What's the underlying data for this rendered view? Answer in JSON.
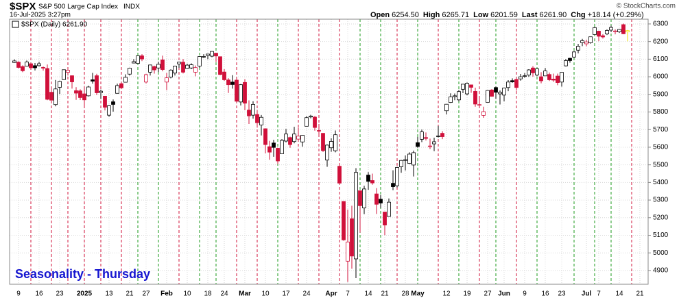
{
  "header": {
    "symbol": "$SPX",
    "name": "S&P 500 Large Cap Index",
    "exchange": "INDX",
    "timestamp": "16-Jul-2025 3:27pm",
    "quote": [
      {
        "label": "Open",
        "value": "6254.50"
      },
      {
        "label": "High",
        "value": "6265.71"
      },
      {
        "label": "Low",
        "value": "6201.59"
      },
      {
        "label": "Last",
        "value": "6261.90"
      },
      {
        "label": "Chg",
        "value": "+18.14 (+0.29%)"
      }
    ],
    "credit": "© StockCharts.com"
  },
  "chart_data": {
    "type": "candlestick",
    "legend": "$SPX (Daily) 6261.90",
    "annotation": "Seasonality - Thursday",
    "up_color": "#000000",
    "down_color": "#d0103a",
    "current_color": "#f2e600",
    "grid": true,
    "ylim": [
      4822,
      6327
    ],
    "yticks": [
      4900,
      5000,
      5100,
      5200,
      5300,
      5400,
      5500,
      5600,
      5700,
      5800,
      5900,
      6000,
      6100,
      6200,
      6300
    ],
    "categories": [
      null,
      "9",
      null,
      null,
      null,
      null,
      "16",
      null,
      null,
      null,
      null,
      "23",
      null,
      null,
      null,
      null,
      null,
      "2025",
      null,
      null,
      null,
      null,
      null,
      "13",
      null,
      null,
      null,
      null,
      "21",
      null,
      null,
      null,
      "27",
      null,
      null,
      null,
      null,
      "Feb",
      null,
      null,
      null,
      null,
      "10",
      null,
      null,
      null,
      null,
      "18",
      null,
      null,
      null,
      "24",
      null,
      null,
      null,
      null,
      "Mar",
      null,
      null,
      null,
      null,
      "10",
      null,
      null,
      null,
      null,
      "17",
      null,
      null,
      null,
      null,
      "24",
      null,
      null,
      null,
      null,
      null,
      "Apr",
      null,
      null,
      null,
      "7",
      null,
      null,
      null,
      null,
      "14",
      null,
      null,
      null,
      "21",
      null,
      null,
      null,
      null,
      "28",
      null,
      null,
      "May",
      null,
      null,
      null,
      null,
      null,
      null,
      "12",
      null,
      null,
      null,
      null,
      "19",
      null,
      null,
      null,
      null,
      "27",
      null,
      null,
      null,
      "Jun",
      null,
      null,
      null,
      null,
      "9",
      null,
      null,
      null,
      null,
      "16",
      null,
      null,
      null,
      "23",
      null,
      null,
      null,
      null,
      null,
      "Jul",
      null,
      null,
      "7",
      null,
      null,
      null,
      null,
      "14",
      null,
      null,
      null,
      null,
      "21"
    ],
    "open": [
      6081,
      6083,
      6058,
      6060,
      6074,
      6063,
      6063,
      6053,
      6047,
      5912,
      5842,
      5940,
      5984,
      6025,
      6006,
      5921,
      5920,
      5903,
      5892,
      5983,
      6006,
      5910,
      5890,
      5782,
      5858,
      5906,
      5961,
      5969,
      6015,
      6078,
      6076,
      6119,
      5970,
      6026,
      6058,
      6050,
      6096,
      5970,
      5998,
      6021,
      6073,
      6083,
      6047,
      6050,
      6026,
      6061,
      6115,
      6121,
      6117,
      6134,
      6114,
      6027,
      5982,
      5970,
      5981,
      5857,
      5968,
      5811,
      5782,
      5786,
      5726,
      5705,
      5603,
      5624,
      5594,
      5563,
      5635,
      5655,
      5632,
      5646,
      5630,
      5719,
      5772,
      5771,
      5695,
      5679,
      5527,
      5597,
      5580,
      5492,
      5292,
      4953,
      5194,
      4966,
      5353,
      5255,
      5442,
      5411,
      5335,
      5305,
      5232,
      5207,
      5395,
      5381,
      5489,
      5529,
      5508,
      5499,
      5626,
      5645,
      5655,
      5605,
      5619,
      5663,
      5679,
      5807,
      5854,
      5887,
      5869,
      5929,
      5903,
      5954,
      5917,
      5841,
      5781,
      5855,
      5925,
      5939,
      5903,
      5896,
      5939,
      5978,
      5985,
      5988,
      6004,
      6010,
      6050,
      6010,
      6000,
      6005,
      6013,
      5987,
      6004,
      5970,
      6062,
      6105,
      6112,
      6151,
      6194,
      6187,
      6193,
      6240,
      6259,
      6233,
      6243,
      6265,
      6256,
      6255,
      6296,
      6254.5,
      null,
      null,
      null
    ],
    "high": [
      6099,
      6088,
      6065,
      6092,
      6079,
      6078,
      6085,
      6058,
      6070,
      5935,
      5982,
      5978,
      6040,
      6049,
      6007,
      5941,
      5929,
      5935,
      5949,
      6022,
      6017,
      5927,
      5891,
      5840,
      5871,
      5961,
      5964,
      6014,
      6052,
      6100,
      6119,
      6128,
      6017,
      6069,
      6063,
      6086,
      6120,
      6022,
      6042,
      6063,
      6085,
      6101,
      6074,
      6076,
      6064,
      6116,
      6128,
      6129,
      6145,
      6134,
      6115,
      6043,
      5992,
      6009,
      5994,
      5959,
      5986,
      5866,
      5861,
      5812,
      5783,
      5706,
      5636,
      5642,
      5597,
      5646,
      5704,
      5660,
      5716,
      5711,
      5670,
      5776,
      5784,
      5777,
      5732,
      5679,
      5616,
      5651,
      5695,
      5500,
      5293,
      5246,
      5268,
      5481,
      5353,
      5381,
      5459,
      5450,
      5368,
      5328,
      5232,
      5309,
      5469,
      5489,
      5528,
      5553,
      5571,
      5581,
      5658,
      5700,
      5684,
      5649,
      5654,
      5721,
      5691,
      5845,
      5906,
      5905,
      5925,
      5959,
      5968,
      5954,
      5938,
      5879,
      5830,
      5923,
      5930,
      5944,
      5922,
      5937,
      5981,
      5991,
      5999,
      6016,
      6021,
      6043,
      6060,
      6046,
      6026,
      6050,
      6024,
      6018,
      6018,
      6026,
      6101,
      6108,
      6146,
      6187,
      6215,
      6211,
      6227,
      6284,
      6262,
      6242,
      6269,
      6290,
      6269,
      6272,
      6302,
      6265.71,
      null,
      null,
      null
    ],
    "low": [
      6079,
      6048,
      6026,
      6058,
      6050,
      6036,
      6059,
      6035,
      5867,
      5866,
      5832,
      5902,
      5982,
      6007,
      5933,
      5869,
      5868,
      5835,
      5888,
      5961,
      5897,
      5874,
      5809,
      5773,
      5802,
      5906,
      5930,
      5969,
      6007,
      6076,
      6075,
      6089,
      5962,
      6007,
      6018,
      6027,
      6031,
      5924,
      5991,
      6007,
      6051,
      6019,
      6044,
      6043,
      6003,
      6051,
      6107,
      6100,
      6111,
      6084,
      6009,
      5977,
      5908,
      5933,
      5858,
      5837,
      5810,
      5732,
      5762,
      5711,
      5667,
      5565,
      5529,
      5546,
      5505,
      5563,
      5628,
      5597,
      5622,
      5632,
      5603,
      5719,
      5764,
      5694,
      5670,
      5573,
      5489,
      5574,
      5571,
      5390,
      5069,
      4835,
      4910,
      4857,
      5115,
      5220,
      5358,
      5387,
      5221,
      5255,
      5101,
      5207,
      5356,
      5372,
      5455,
      5468,
      5505,
      5434,
      5597,
      5629,
      5638,
      5589,
      5578,
      5655,
      5646,
      5786,
      5851,
      5867,
      5860,
      5907,
      5895,
      5909,
      5830,
      5825,
      5767,
      5855,
      5887,
      5874,
      5843,
      5861,
      5918,
      5966,
      5921,
      5978,
      5994,
      6000,
      6001,
      6003,
      5963,
      6005,
      5976,
      5971,
      5952,
      5944,
      6058,
      6080,
      6107,
      6133,
      6174,
      6173,
      6188,
      6240,
      6202,
      6217,
      6237,
      6253,
      6241,
      6249,
      6242,
      6201.59,
      null,
      null,
      null
    ],
    "close": [
      6090,
      6053,
      6034,
      6084,
      6051,
      6051,
      6074,
      6050,
      5872,
      5867,
      5931,
      5974,
      6040,
      6037,
      5971,
      5907,
      5882,
      5869,
      5942,
      5975,
      5909,
      5918,
      5827,
      5836,
      5843,
      5950,
      5937,
      5997,
      6049,
      6086,
      6119,
      6101,
      6012,
      6067,
      6039,
      6071,
      6041,
      5994,
      6038,
      6061,
      6083,
      6026,
      6066,
      6068,
      6052,
      6115,
      6115,
      6129,
      6144,
      6118,
      6013,
      5983,
      5955,
      5956,
      5861,
      5955,
      5850,
      5778,
      5843,
      5739,
      5770,
      5615,
      5572,
      5599,
      5522,
      5639,
      5675,
      5615,
      5675,
      5663,
      5668,
      5768,
      5777,
      5712,
      5693,
      5581,
      5612,
      5633,
      5671,
      5396,
      5074,
      5062,
      4982,
      5457,
      5268,
      5363,
      5406,
      5397,
      5276,
      5283,
      5158,
      5288,
      5376,
      5485,
      5525,
      5529,
      5561,
      5569,
      5604,
      5687,
      5650,
      5607,
      5631,
      5664,
      5660,
      5844,
      5886,
      5892,
      5916,
      5958,
      5963,
      5940,
      5845,
      5842,
      5802,
      5922,
      5889,
      5912,
      5912,
      5936,
      5970,
      5971,
      5939,
      6000,
      6006,
      6039,
      6022,
      6045,
      5977,
      6033,
      5983,
      5981,
      5967,
      6025,
      6092,
      6092,
      6141,
      6173,
      6205,
      6198,
      6227,
      6279,
      6230,
      6226,
      6263,
      6280,
      6260,
      6269,
      6244,
      6261.9,
      null,
      null,
      null
    ],
    "thursday_lines": [
      {
        "index": 4,
        "color": "#d0103a"
      },
      {
        "index": 9,
        "color": "#d0103a"
      },
      {
        "index": 13,
        "color": "#d0103a"
      },
      {
        "index": 17,
        "color": "#d0103a"
      },
      {
        "index": 21,
        "color": "#d0103a"
      },
      {
        "index": 26,
        "color": "#d0103a"
      },
      {
        "index": 30,
        "color": "#1a9a1a"
      },
      {
        "index": 35,
        "color": "#1a9a1a"
      },
      {
        "index": 40,
        "color": "#d0103a"
      },
      {
        "index": 45,
        "color": "#1a9a1a"
      },
      {
        "index": 49,
        "color": "#1a9a1a"
      },
      {
        "index": 54,
        "color": "#d0103a"
      },
      {
        "index": 59,
        "color": "#d0103a"
      },
      {
        "index": 64,
        "color": "#1a9a1a"
      },
      {
        "index": 69,
        "color": "#d0103a"
      },
      {
        "index": 74,
        "color": "#d0103a"
      },
      {
        "index": 79,
        "color": "#d0103a"
      },
      {
        "index": 84,
        "color": "#1a9a1a"
      },
      {
        "index": 89,
        "color": "#1a9a1a"
      },
      {
        "index": 93,
        "color": "#d0103a"
      },
      {
        "index": 98,
        "color": "#1a9a1a"
      },
      {
        "index": 103,
        "color": "#d0103a"
      },
      {
        "index": 108,
        "color": "#1a9a1a"
      },
      {
        "index": 113,
        "color": "#d0103a"
      },
      {
        "index": 117,
        "color": "#1a9a1a"
      },
      {
        "index": 122,
        "color": "#d0103a"
      },
      {
        "index": 127,
        "color": "#1a9a1a"
      },
      {
        "index": 136,
        "color": "#1a9a1a"
      },
      {
        "index": 141,
        "color": "#1a9a1a"
      },
      {
        "index": 145,
        "color": "#1a9a1a"
      },
      {
        "index": 150,
        "color": "#d0103a"
      }
    ]
  }
}
